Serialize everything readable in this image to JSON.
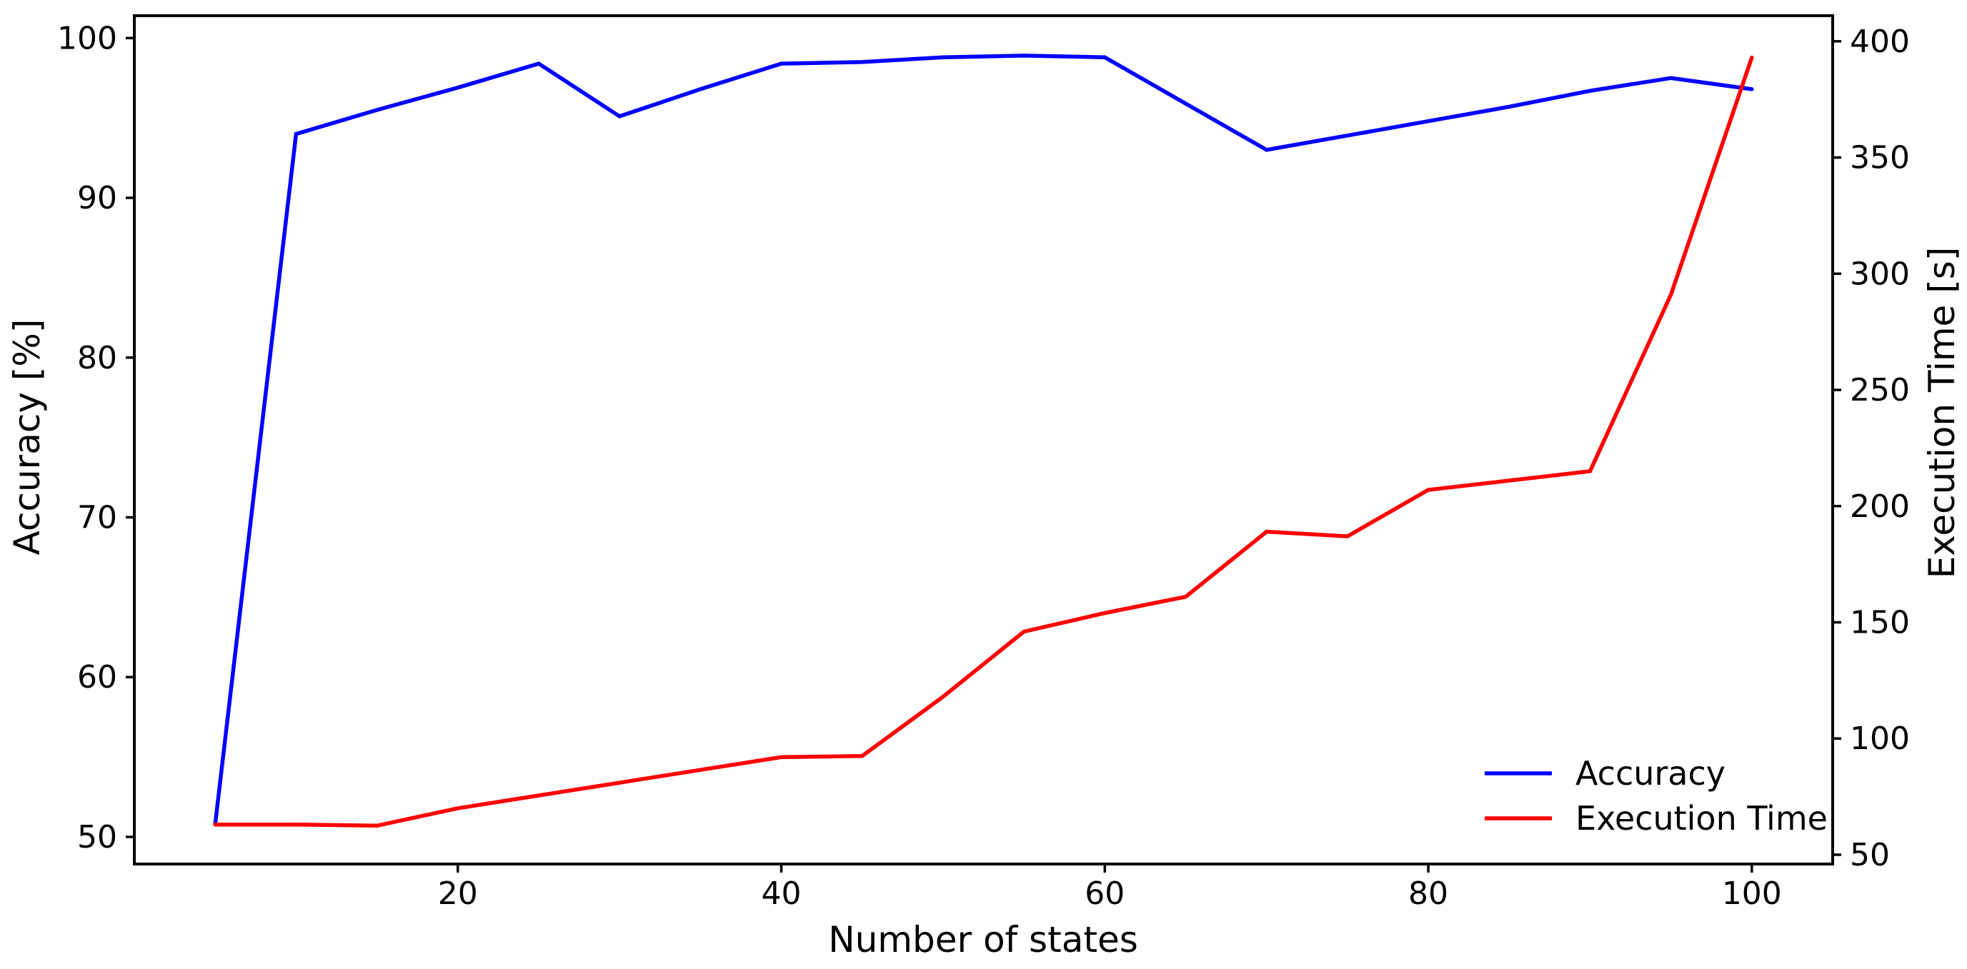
{
  "figure": {
    "background_color": "#ffffff",
    "text_color": "#000000",
    "spine_color": "#000000"
  },
  "chart_data": {
    "type": "line",
    "title": "",
    "xlabel": "Number of states",
    "ylabel_left": "Accuracy [%]",
    "ylabel_right": "Execution Time [s]",
    "x": [
      5,
      10,
      15,
      20,
      25,
      30,
      35,
      40,
      45,
      50,
      55,
      60,
      65,
      70,
      75,
      80,
      85,
      90,
      95,
      100
    ],
    "series": [
      {
        "name": "Accuracy",
        "axis": "left",
        "color": "#0000ff",
        "values": [
          50.8,
          94.0,
          95.5,
          96.9,
          98.4,
          95.1,
          96.8,
          98.4,
          98.5,
          98.8,
          98.9,
          98.8,
          95.9,
          93.0,
          93.9,
          94.8,
          95.7,
          96.7,
          97.5,
          96.8
        ]
      },
      {
        "name": "Execution Time",
        "axis": "right",
        "color": "#ff0000",
        "values": [
          63,
          63,
          62.5,
          70,
          75.5,
          81,
          86.5,
          92,
          92.5,
          118,
          146,
          154,
          161,
          189,
          187,
          207,
          211,
          215,
          291,
          393
        ]
      }
    ],
    "x_ticks": [
      20,
      40,
      60,
      80,
      100
    ],
    "y_ticks_left": [
      50,
      60,
      70,
      80,
      90,
      100
    ],
    "y_ticks_right": [
      50,
      100,
      150,
      200,
      250,
      300,
      350,
      400
    ],
    "xlim": [
      0,
      105
    ],
    "ylim_left": [
      48.3,
      101.4
    ],
    "ylim_right": [
      46,
      411
    ],
    "grid": false,
    "legend_position": "lower right",
    "legend": [
      "Accuracy",
      "Execution Time"
    ]
  }
}
